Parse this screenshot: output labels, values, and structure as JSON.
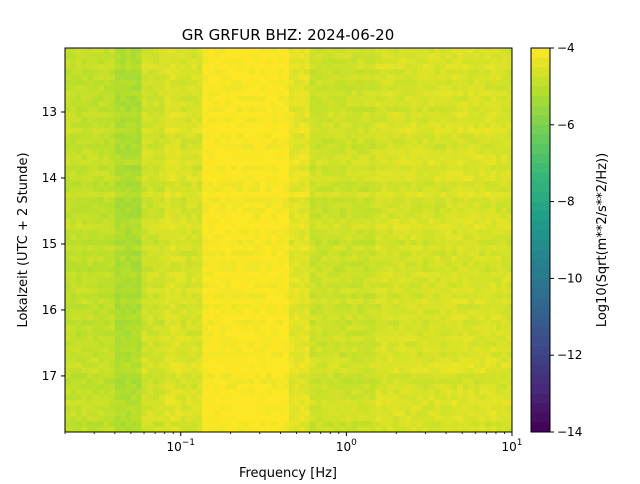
{
  "chart_data": {
    "type": "heatmap",
    "title": "GR GRFUR  BHZ: 2024-06-20",
    "xlabel": "Frequency [Hz]",
    "ylabel": "Lokalzeit (UTC + 2 Stunde)",
    "x_scale": "log",
    "xlim": [
      0.02,
      10
    ],
    "ylim": [
      12.03,
      17.85
    ],
    "y_inverted": true,
    "x_ticks": [
      {
        "value": 0.1,
        "base": "10",
        "exp": "−1"
      },
      {
        "value": 1,
        "base": "10",
        "exp": "0"
      },
      {
        "value": 10,
        "base": "10",
        "exp": "1"
      }
    ],
    "y_ticks": [
      {
        "value": 13,
        "label": "13"
      },
      {
        "value": 14,
        "label": "14"
      },
      {
        "value": 15,
        "label": "15"
      },
      {
        "value": 16,
        "label": "16"
      },
      {
        "value": 17,
        "label": "17"
      }
    ],
    "colorbar": {
      "label": "Log10(Sqrt(m**2/s**2/Hz))",
      "colormap": "viridis",
      "range": [
        -14,
        -4
      ],
      "ticks": [
        {
          "value": -4,
          "label": "−4"
        },
        {
          "value": -6,
          "label": "−6"
        },
        {
          "value": -8,
          "label": "−8"
        },
        {
          "value": -10,
          "label": "−10"
        },
        {
          "value": -12,
          "label": "−12"
        },
        {
          "value": -14,
          "label": "−14"
        }
      ]
    },
    "frequency_bands": [
      {
        "f0": 0.02,
        "f1": 0.04,
        "level": -4.9
      },
      {
        "f0": 0.04,
        "f1": 0.058,
        "level": -5.2
      },
      {
        "f0": 0.058,
        "f1": 0.08,
        "level": -4.7
      },
      {
        "f0": 0.08,
        "f1": 0.1,
        "level": -4.5
      },
      {
        "f0": 0.1,
        "f1": 0.135,
        "level": -4.6
      },
      {
        "f0": 0.135,
        "f1": 0.45,
        "level": -4.05
      },
      {
        "f0": 0.45,
        "f1": 0.6,
        "level": -4.4
      },
      {
        "f0": 0.6,
        "f1": 1.5,
        "level": -4.75
      },
      {
        "f0": 1.5,
        "f1": 4,
        "level": -4.6
      },
      {
        "f0": 4,
        "f1": 8,
        "level": -4.55
      },
      {
        "f0": 8,
        "f1": 10,
        "level": -4.6
      }
    ]
  }
}
